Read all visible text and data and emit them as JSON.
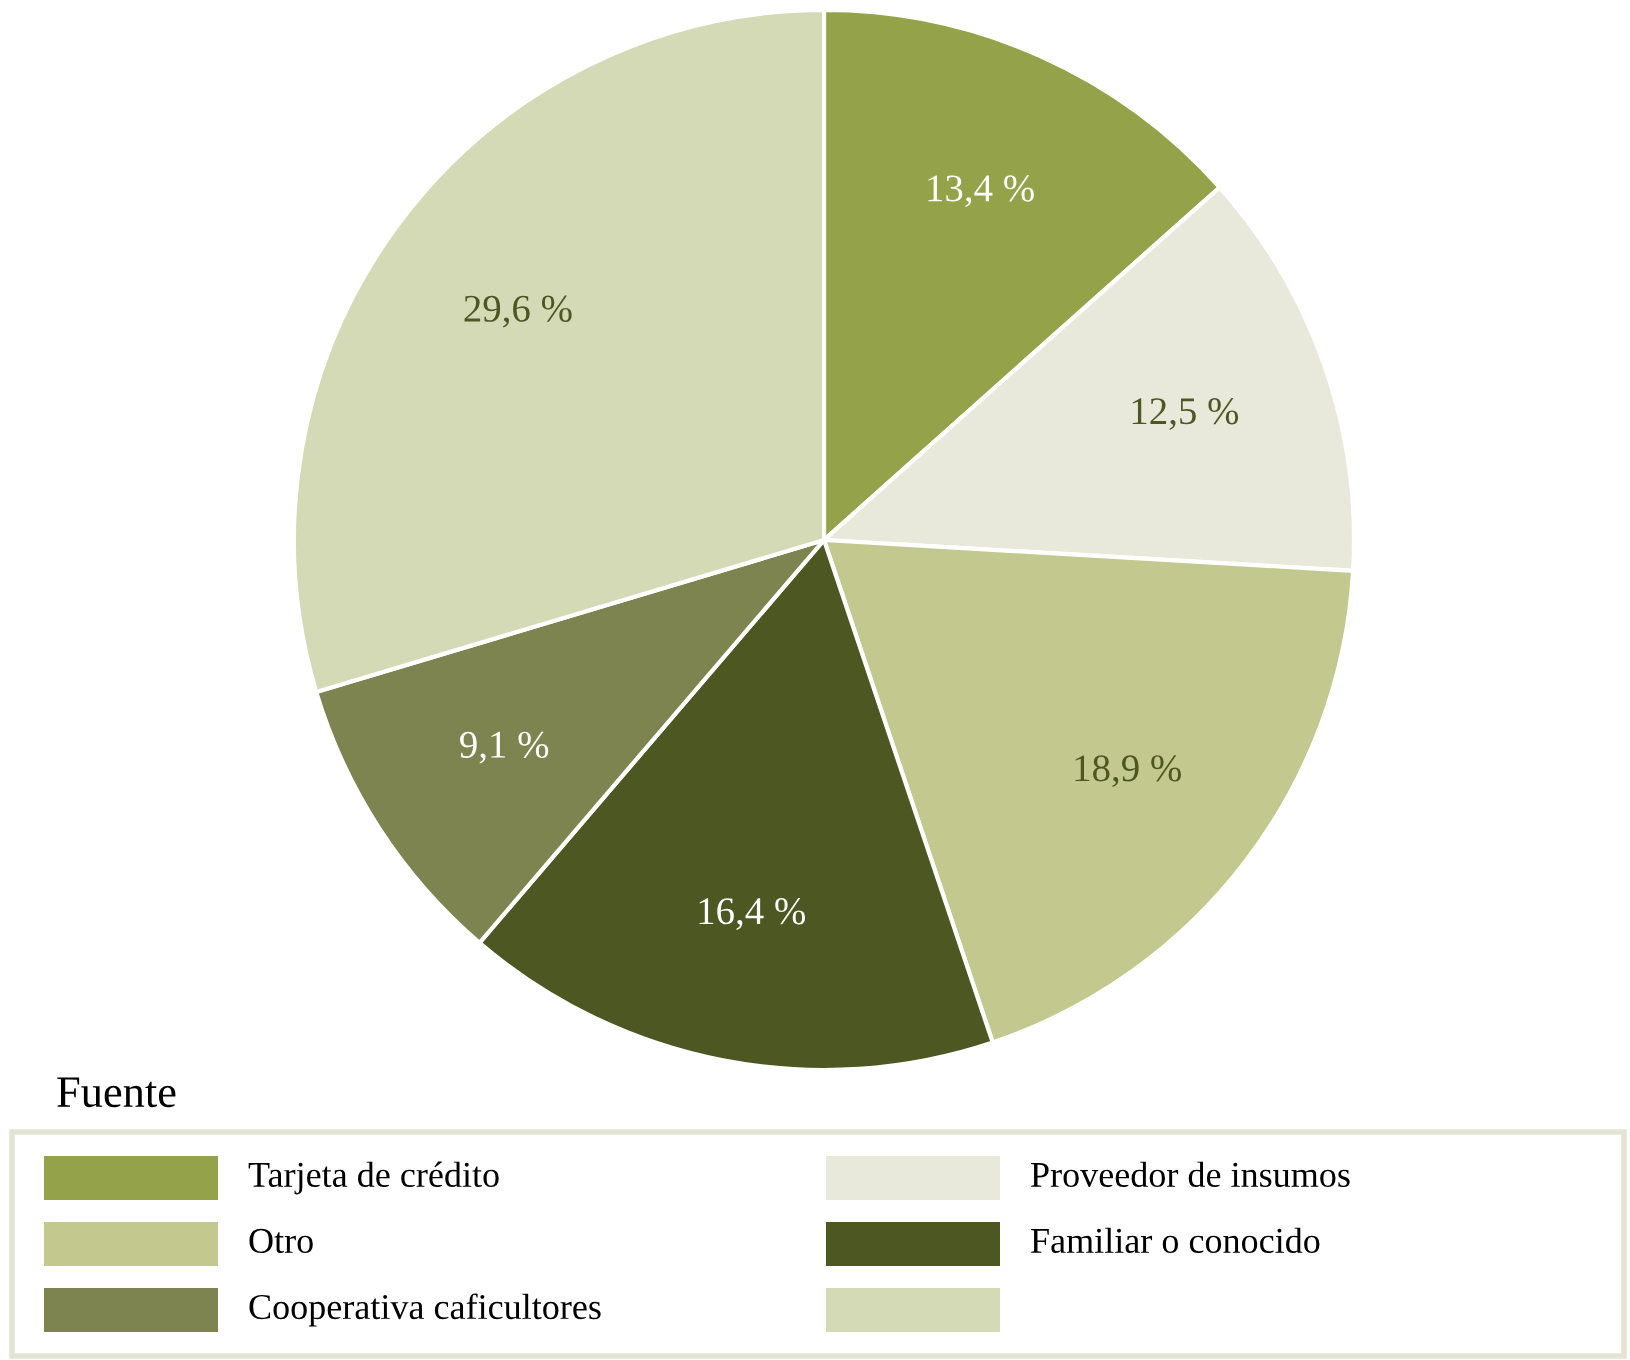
{
  "chart_data": {
    "type": "pie",
    "categories": [
      "Tarjeta de crédito",
      "Proveedor de insumos",
      "Otro",
      "Familiar o conocido",
      "Cooperativa caficultores",
      null
    ],
    "values": [
      13.4,
      12.5,
      18.9,
      16.4,
      9.1,
      29.6
    ],
    "value_labels": [
      "13,4 %",
      "12,5 %",
      "18,9 %",
      "16,4 %",
      "9,1 %",
      "29,6 %"
    ],
    "colors": [
      "#94a34a",
      "#e9e9db",
      "#c3c88f",
      "#4d5722",
      "#7d8450",
      "#d5dab6"
    ],
    "legend_title": "Fuente",
    "legend": "bottom"
  }
}
